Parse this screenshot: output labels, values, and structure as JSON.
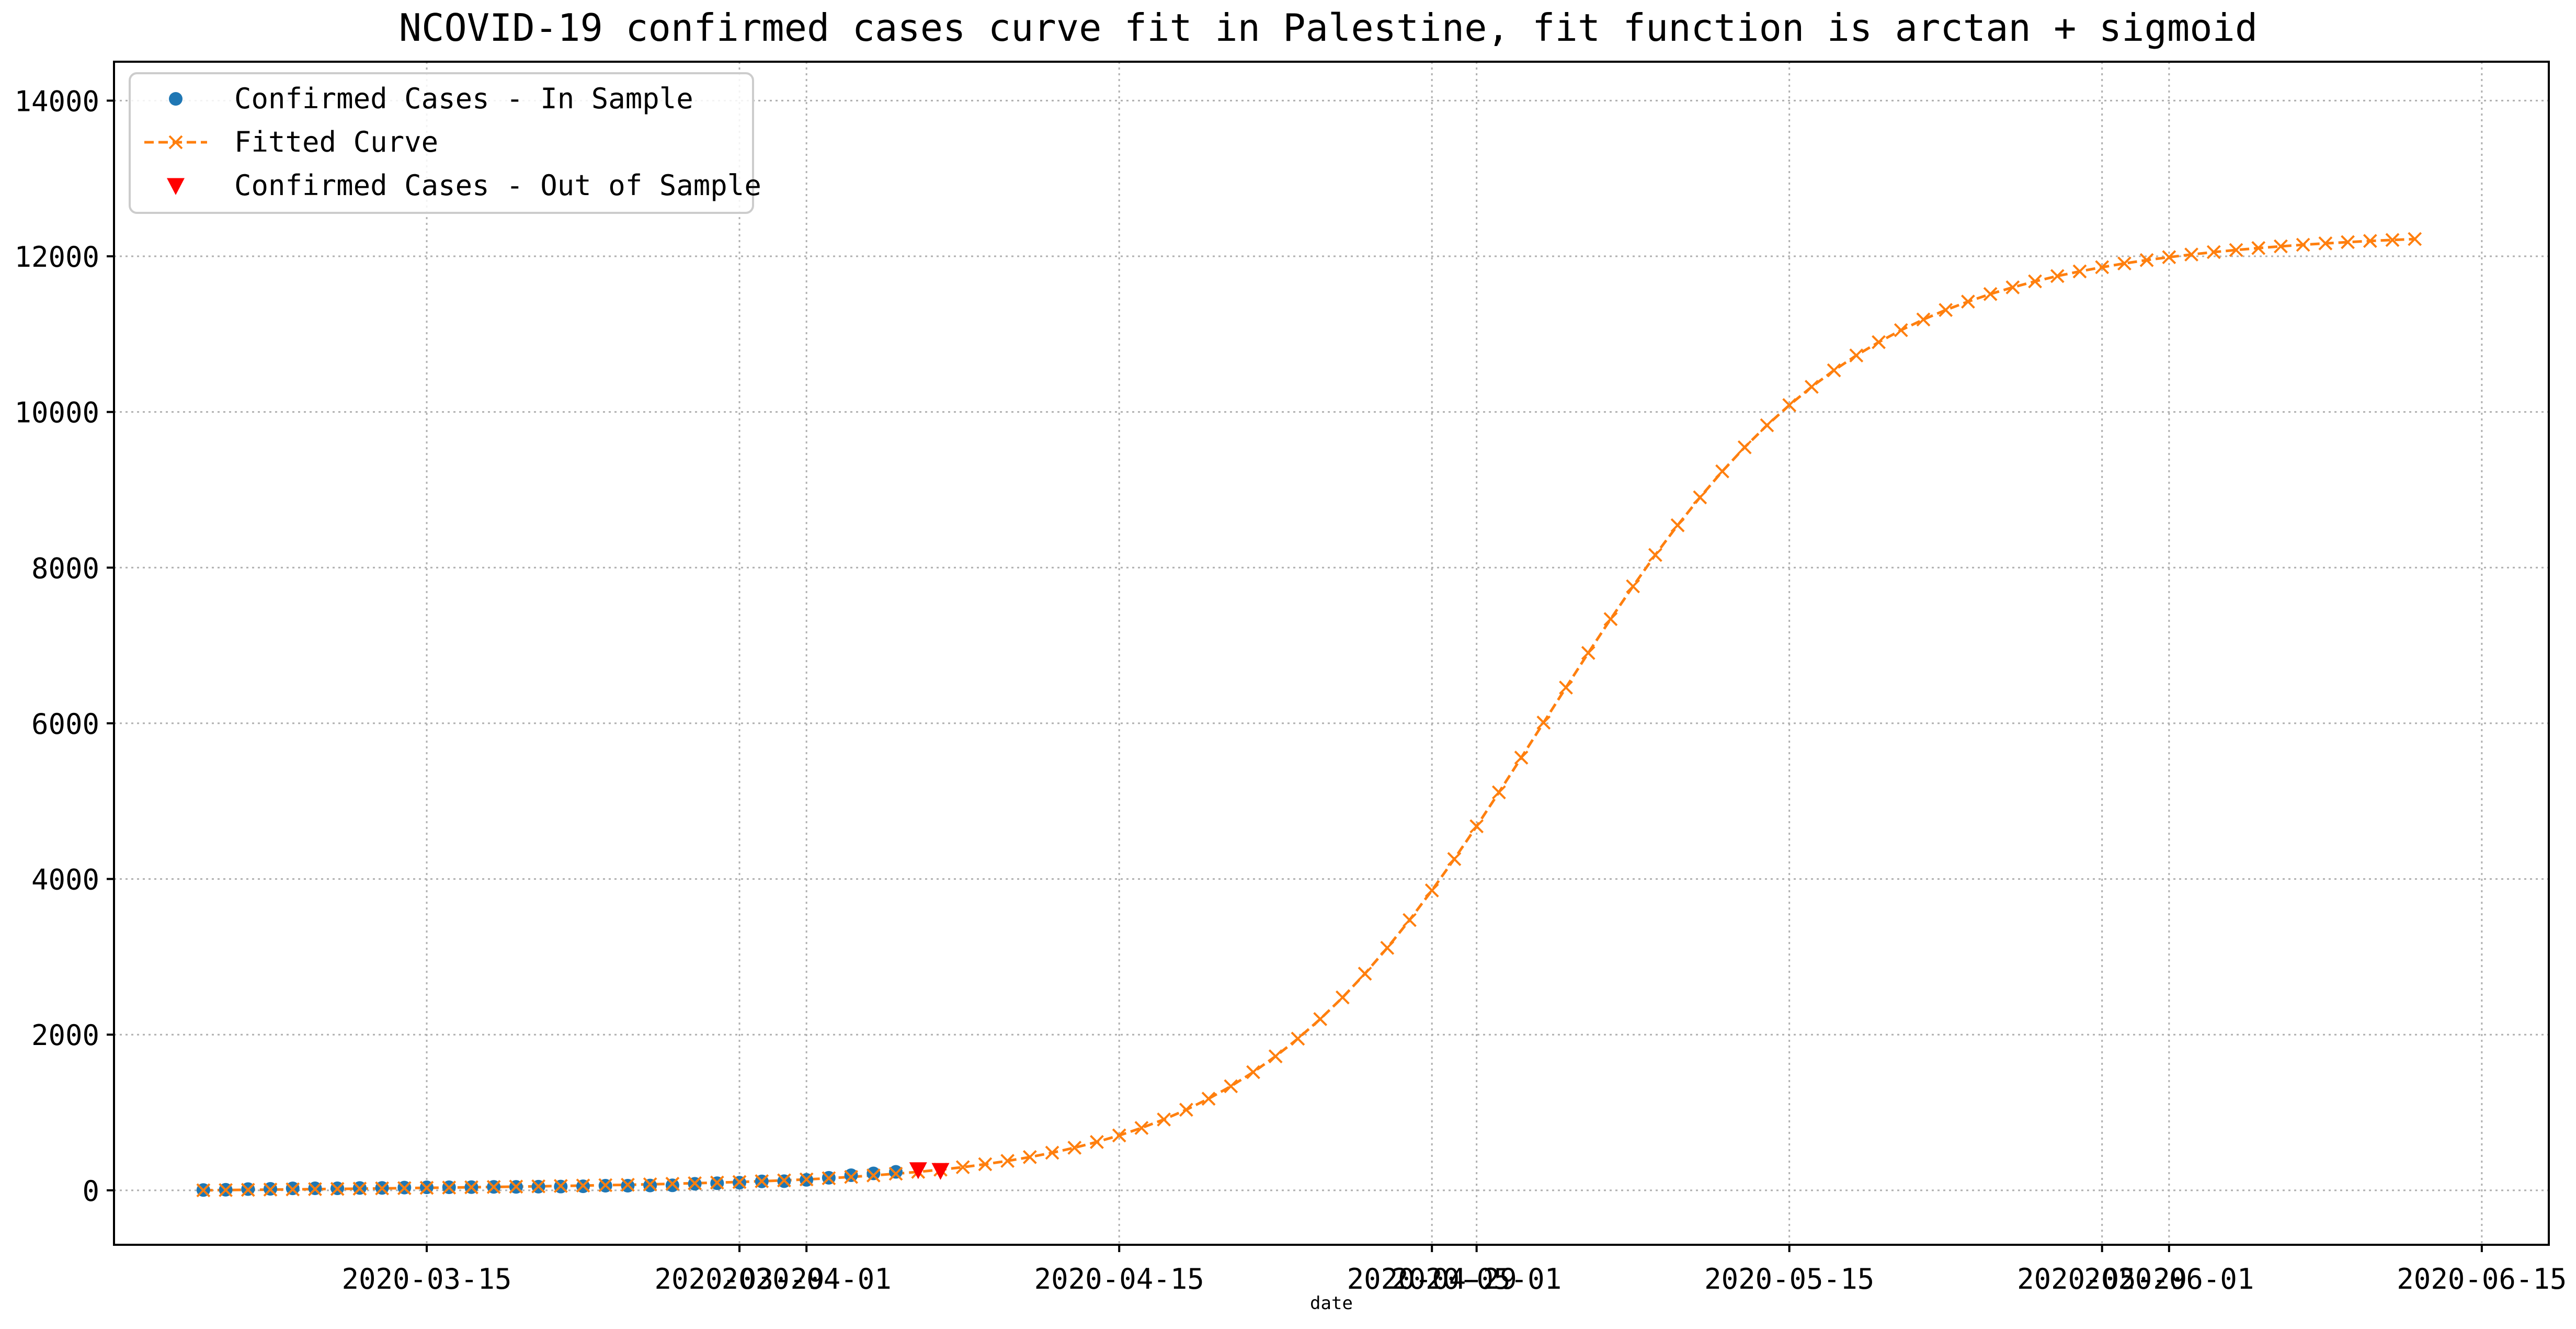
{
  "chart_data": {
    "type": "line",
    "title": "NCOVID-19 confirmed cases curve fit in Palestine, fit function is arctan + sigmoid",
    "xlabel": "date",
    "ylabel": "",
    "x_axis_kind": "date",
    "xlim": [
      "2020-03-01",
      "2020-06-18"
    ],
    "ylim": [
      -700,
      14500
    ],
    "x_ticks": [
      "2020-03-15",
      "2020-03-29",
      "2020-04-01",
      "2020-04-15",
      "2020-04-29",
      "2020-05-01",
      "2020-05-15",
      "2020-05-29",
      "2020-06-01",
      "2020-06-15"
    ],
    "x_tick_labels": [
      "2020-03-15",
      "2020-03-29",
      "2020-04-01",
      "2020-04-15",
      "2020-04-29",
      "2020-05-01",
      "2020-05-15",
      "2020-05-29",
      "2020-06-01",
      "2020-06-15"
    ],
    "y_ticks": [
      0,
      2000,
      4000,
      6000,
      8000,
      10000,
      12000,
      14000
    ],
    "y_tick_labels": [
      "0",
      "2000",
      "4000",
      "6000",
      "8000",
      "10000",
      "12000",
      "14000"
    ],
    "grid": true,
    "legend_position": "top-left",
    "series": [
      {
        "name": "Confirmed Cases - In Sample",
        "style": "markers",
        "marker": "circle",
        "color": "#1f77b4",
        "points": [
          {
            "x": "2020-03-05",
            "y": 4
          },
          {
            "x": "2020-03-06",
            "y": 7
          },
          {
            "x": "2020-03-07",
            "y": 16
          },
          {
            "x": "2020-03-08",
            "y": 19
          },
          {
            "x": "2020-03-09",
            "y": 25
          },
          {
            "x": "2020-03-10",
            "y": 26
          },
          {
            "x": "2020-03-11",
            "y": 26
          },
          {
            "x": "2020-03-12",
            "y": 30
          },
          {
            "x": "2020-03-13",
            "y": 31
          },
          {
            "x": "2020-03-14",
            "y": 35
          },
          {
            "x": "2020-03-15",
            "y": 38
          },
          {
            "x": "2020-03-16",
            "y": 39
          },
          {
            "x": "2020-03-17",
            "y": 41
          },
          {
            "x": "2020-03-18",
            "y": 44
          },
          {
            "x": "2020-03-19",
            "y": 44
          },
          {
            "x": "2020-03-20",
            "y": 47
          },
          {
            "x": "2020-03-21",
            "y": 48
          },
          {
            "x": "2020-03-22",
            "y": 52
          },
          {
            "x": "2020-03-23",
            "y": 59
          },
          {
            "x": "2020-03-24",
            "y": 59
          },
          {
            "x": "2020-03-25",
            "y": 62
          },
          {
            "x": "2020-03-26",
            "y": 64
          },
          {
            "x": "2020-03-27",
            "y": 84
          },
          {
            "x": "2020-03-28",
            "y": 91
          },
          {
            "x": "2020-03-29",
            "y": 98
          },
          {
            "x": "2020-03-30",
            "y": 115
          },
          {
            "x": "2020-03-31",
            "y": 117
          },
          {
            "x": "2020-04-01",
            "y": 134
          },
          {
            "x": "2020-04-02",
            "y": 161
          },
          {
            "x": "2020-04-03",
            "y": 194
          },
          {
            "x": "2020-04-04",
            "y": 217
          },
          {
            "x": "2020-04-05",
            "y": 237
          }
        ]
      },
      {
        "name": "Fitted Curve",
        "style": "dashed-line-x-markers",
        "marker": "x",
        "color": "#ff7f0e",
        "points": [
          {
            "x": "2020-03-05",
            "y": 0
          },
          {
            "x": "2020-03-06",
            "y": 3
          },
          {
            "x": "2020-03-07",
            "y": 6
          },
          {
            "x": "2020-03-08",
            "y": 9
          },
          {
            "x": "2020-03-09",
            "y": 12
          },
          {
            "x": "2020-03-10",
            "y": 15
          },
          {
            "x": "2020-03-11",
            "y": 18
          },
          {
            "x": "2020-03-12",
            "y": 21
          },
          {
            "x": "2020-03-13",
            "y": 25
          },
          {
            "x": "2020-03-14",
            "y": 28
          },
          {
            "x": "2020-03-15",
            "y": 32
          },
          {
            "x": "2020-03-16",
            "y": 35
          },
          {
            "x": "2020-03-17",
            "y": 39
          },
          {
            "x": "2020-03-18",
            "y": 43
          },
          {
            "x": "2020-03-19",
            "y": 47
          },
          {
            "x": "2020-03-20",
            "y": 51
          },
          {
            "x": "2020-03-21",
            "y": 56
          },
          {
            "x": "2020-03-22",
            "y": 61
          },
          {
            "x": "2020-03-23",
            "y": 66
          },
          {
            "x": "2020-03-24",
            "y": 71
          },
          {
            "x": "2020-03-25",
            "y": 77
          },
          {
            "x": "2020-03-26",
            "y": 84
          },
          {
            "x": "2020-03-27",
            "y": 91
          },
          {
            "x": "2020-03-28",
            "y": 99
          },
          {
            "x": "2020-03-29",
            "y": 107
          },
          {
            "x": "2020-03-30",
            "y": 117
          },
          {
            "x": "2020-03-31",
            "y": 128
          },
          {
            "x": "2020-04-01",
            "y": 140
          },
          {
            "x": "2020-04-02",
            "y": 155
          },
          {
            "x": "2020-04-03",
            "y": 172
          },
          {
            "x": "2020-04-04",
            "y": 191
          },
          {
            "x": "2020-04-05",
            "y": 213
          },
          {
            "x": "2020-04-06",
            "y": 237
          },
          {
            "x": "2020-04-07",
            "y": 265
          },
          {
            "x": "2020-04-08",
            "y": 297
          },
          {
            "x": "2020-04-09",
            "y": 335
          },
          {
            "x": "2020-04-10",
            "y": 378
          },
          {
            "x": "2020-04-11",
            "y": 427
          },
          {
            "x": "2020-04-12",
            "y": 483
          },
          {
            "x": "2020-04-13",
            "y": 547
          },
          {
            "x": "2020-04-14",
            "y": 621
          },
          {
            "x": "2020-04-15",
            "y": 705
          },
          {
            "x": "2020-04-16",
            "y": 801
          },
          {
            "x": "2020-04-17",
            "y": 910
          },
          {
            "x": "2020-04-18",
            "y": 1035
          },
          {
            "x": "2020-04-19",
            "y": 1177
          },
          {
            "x": "2020-04-20",
            "y": 1337
          },
          {
            "x": "2020-04-21",
            "y": 1518
          },
          {
            "x": "2020-04-22",
            "y": 1721
          },
          {
            "x": "2020-04-23",
            "y": 1948
          },
          {
            "x": "2020-04-24",
            "y": 2200
          },
          {
            "x": "2020-04-25",
            "y": 2478
          },
          {
            "x": "2020-04-26",
            "y": 2783
          },
          {
            "x": "2020-04-27",
            "y": 3115
          },
          {
            "x": "2020-04-28",
            "y": 3472
          },
          {
            "x": "2020-04-29",
            "y": 3853
          },
          {
            "x": "2020-04-30",
            "y": 4256
          },
          {
            "x": "2020-05-01",
            "y": 4677
          },
          {
            "x": "2020-05-02",
            "y": 5113
          },
          {
            "x": "2020-05-03",
            "y": 5559
          },
          {
            "x": "2020-05-04",
            "y": 6009
          },
          {
            "x": "2020-05-05",
            "y": 6459
          },
          {
            "x": "2020-05-06",
            "y": 6904
          },
          {
            "x": "2020-05-07",
            "y": 7339
          },
          {
            "x": "2020-05-08",
            "y": 7760
          },
          {
            "x": "2020-05-09",
            "y": 8163
          },
          {
            "x": "2020-05-10",
            "y": 8544
          },
          {
            "x": "2020-05-11",
            "y": 8903
          },
          {
            "x": "2020-05-12",
            "y": 9237
          },
          {
            "x": "2020-05-13",
            "y": 9546
          },
          {
            "x": "2020-05-14",
            "y": 9829
          },
          {
            "x": "2020-05-15",
            "y": 10088
          },
          {
            "x": "2020-05-16",
            "y": 10323
          },
          {
            "x": "2020-05-17",
            "y": 10535
          },
          {
            "x": "2020-05-18",
            "y": 10726
          },
          {
            "x": "2020-05-19",
            "y": 10897
          },
          {
            "x": "2020-05-20",
            "y": 11051
          },
          {
            "x": "2020-05-21",
            "y": 11188
          },
          {
            "x": "2020-05-22",
            "y": 11310
          },
          {
            "x": "2020-05-23",
            "y": 11418
          },
          {
            "x": "2020-05-24",
            "y": 11515
          },
          {
            "x": "2020-05-25",
            "y": 11601
          },
          {
            "x": "2020-05-26",
            "y": 11678
          },
          {
            "x": "2020-05-27",
            "y": 11746
          },
          {
            "x": "2020-05-28",
            "y": 11806
          },
          {
            "x": "2020-05-29",
            "y": 11860
          },
          {
            "x": "2020-05-30",
            "y": 11908
          },
          {
            "x": "2020-05-31",
            "y": 11951
          },
          {
            "x": "2020-06-01",
            "y": 11989
          },
          {
            "x": "2020-06-02",
            "y": 12023
          },
          {
            "x": "2020-06-03",
            "y": 12054
          },
          {
            "x": "2020-06-04",
            "y": 12081
          },
          {
            "x": "2020-06-05",
            "y": 12106
          },
          {
            "x": "2020-06-06",
            "y": 12128
          },
          {
            "x": "2020-06-07",
            "y": 12148
          },
          {
            "x": "2020-06-08",
            "y": 12166
          },
          {
            "x": "2020-06-09",
            "y": 12182
          },
          {
            "x": "2020-06-10",
            "y": 12197
          },
          {
            "x": "2020-06-11",
            "y": 12210
          },
          {
            "x": "2020-06-12",
            "y": 12222
          }
        ]
      },
      {
        "name": "Confirmed Cases - Out of Sample",
        "style": "markers",
        "marker": "triangle-down",
        "color": "#ff0000",
        "points": [
          {
            "x": "2020-04-06",
            "y": 263
          },
          {
            "x": "2020-04-07",
            "y": 254
          }
        ]
      }
    ]
  }
}
